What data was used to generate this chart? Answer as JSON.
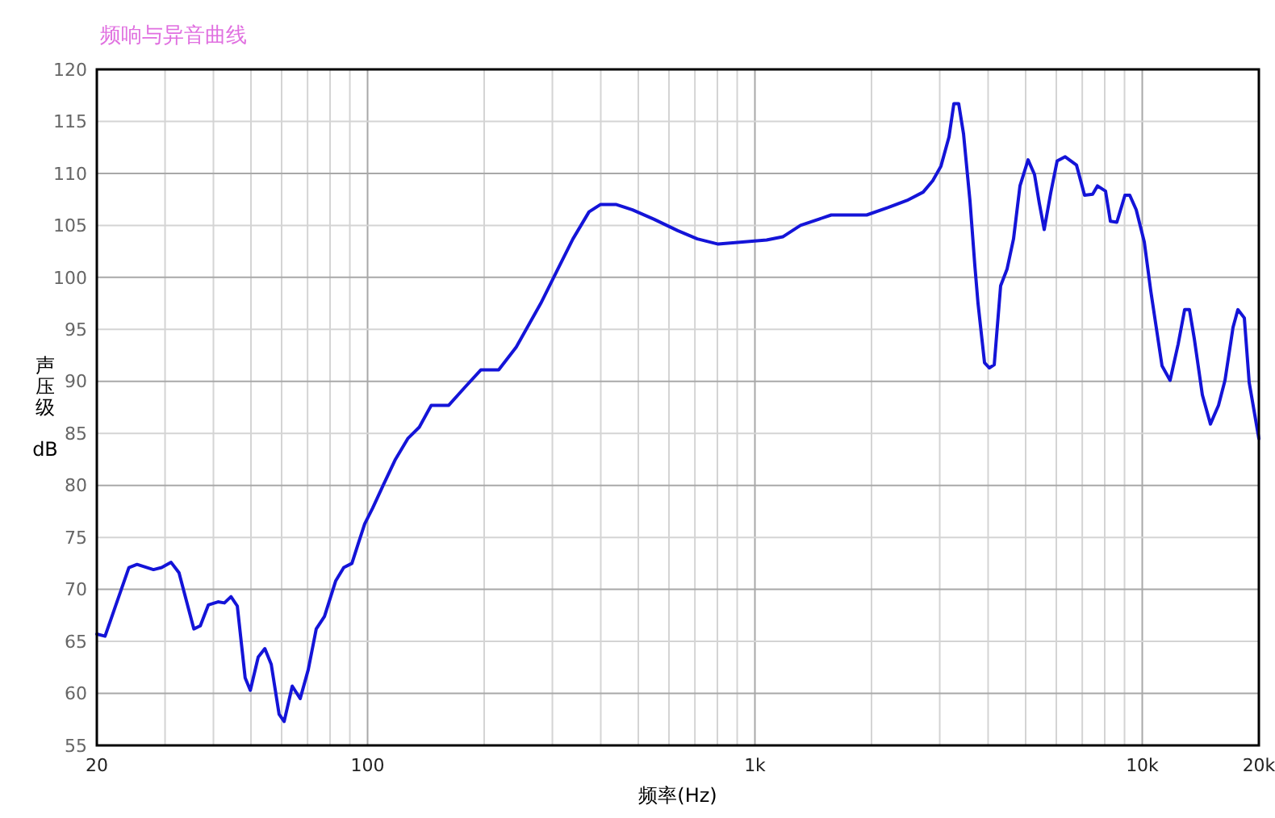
{
  "chart_data": {
    "type": "line",
    "title": "频响与异音曲线",
    "xlabel": "频率(Hz)",
    "ylabel": "声压级 dB",
    "log": "x",
    "grid": true,
    "marker": "none",
    "line_style": "solid",
    "xlim": [
      20,
      20000
    ],
    "ylim": [
      55,
      120
    ],
    "xticks": [
      20,
      {
        "value": 30,
        "label": null
      },
      {
        "value": 40,
        "label": null
      },
      {
        "value": 50,
        "label": null
      },
      {
        "value": 60,
        "label": null
      },
      {
        "value": 70,
        "label": null
      },
      {
        "value": 80,
        "label": null
      },
      {
        "value": 90,
        "label": null
      },
      100,
      {
        "value": 200,
        "label": null
      },
      {
        "value": 300,
        "label": null
      },
      {
        "value": 400,
        "label": null
      },
      {
        "value": 500,
        "label": null
      },
      {
        "value": 600,
        "label": null
      },
      {
        "value": 700,
        "label": null
      },
      {
        "value": 800,
        "label": null
      },
      {
        "value": 900,
        "label": null
      },
      {
        "value": 1000,
        "label": "1k"
      },
      {
        "value": 2000,
        "label": null
      },
      {
        "value": 3000,
        "label": null
      },
      {
        "value": 4000,
        "label": null
      },
      {
        "value": 5000,
        "label": null
      },
      {
        "value": 6000,
        "label": null
      },
      {
        "value": 7000,
        "label": null
      },
      {
        "value": 8000,
        "label": null
      },
      {
        "value": 9000,
        "label": null
      },
      {
        "value": 10000,
        "label": "10k"
      },
      {
        "value": 20000,
        "label": "20k"
      }
    ],
    "yticks": [
      55,
      60,
      65,
      70,
      75,
      80,
      85,
      90,
      95,
      100,
      105,
      110,
      115,
      120
    ],
    "series": [
      {
        "color": "#1414d8",
        "x": [
          20,
          21,
          22.4,
          24.2,
          25.4,
          28,
          29.4,
          31.1,
          32.6,
          35.6,
          37,
          38.8,
          41.1,
          42.7,
          44.4,
          46.1,
          48.3,
          49.8,
          52.2,
          54.3,
          56.4,
          59.1,
          60.9,
          63.9,
          67,
          70.3,
          73.7,
          77.4,
          82.7,
          86.8,
          91.1,
          94.6,
          98.3,
          103,
          110,
          118,
          127,
          136,
          146,
          162,
          178,
          196,
          218,
          242,
          280,
          308,
          339,
          373,
          399,
          439,
          483,
          548,
          632,
          710,
          804,
          928,
          1072,
          1180,
          1311,
          1574,
          1944,
          2202,
          2470,
          2719,
          2878,
          3022,
          3170,
          3263,
          3358,
          3456,
          3592,
          3697,
          3767,
          3915,
          4030,
          4148,
          4309,
          4477,
          4652,
          4834,
          5073,
          5270,
          5425,
          5583,
          5802,
          6030,
          6325,
          6764,
          7096,
          7446,
          7661,
          8038,
          8274,
          8598,
          9022,
          9284,
          9647,
          10122,
          10518,
          11247,
          11798,
          12382,
          12865,
          13240,
          13626,
          14294,
          14998,
          15734,
          16352,
          17154,
          17656,
          18346,
          18883,
          20000
        ],
        "values": [
          65.7,
          65.5,
          68.5,
          72.1,
          72.4,
          71.9,
          72.1,
          72.6,
          71.6,
          66.2,
          66.5,
          68.5,
          68.8,
          68.7,
          69.3,
          68.4,
          61.5,
          60.3,
          63.5,
          64.3,
          62.8,
          58.0,
          57.3,
          60.7,
          59.5,
          62.3,
          66.2,
          67.4,
          70.8,
          72.1,
          72.5,
          74.4,
          76.3,
          77.8,
          80.1,
          82.5,
          84.5,
          85.6,
          87.7,
          87.7,
          89.4,
          91.1,
          91.1,
          93.3,
          97.5,
          100.6,
          103.7,
          106.3,
          107.0,
          107.0,
          106.5,
          105.6,
          104.5,
          103.7,
          103.2,
          103.4,
          103.6,
          103.9,
          105.0,
          106.0,
          106.0,
          106.7,
          107.4,
          108.2,
          109.3,
          110.7,
          113.5,
          116.7,
          116.7,
          113.8,
          107.3,
          101.1,
          97.5,
          91.8,
          91.3,
          91.6,
          99.2,
          100.8,
          103.7,
          108.8,
          111.3,
          109.9,
          107.1,
          104.6,
          108.1,
          111.2,
          111.6,
          110.8,
          107.9,
          108.0,
          108.8,
          108.3,
          105.4,
          105.3,
          107.9,
          107.9,
          106.5,
          103.4,
          98.7,
          91.5,
          90.1,
          93.6,
          96.9,
          96.9,
          94.1,
          88.7,
          85.9,
          87.7,
          90.1,
          95.2,
          96.9,
          96.1,
          89.9,
          84.5
        ]
      }
    ]
  }
}
